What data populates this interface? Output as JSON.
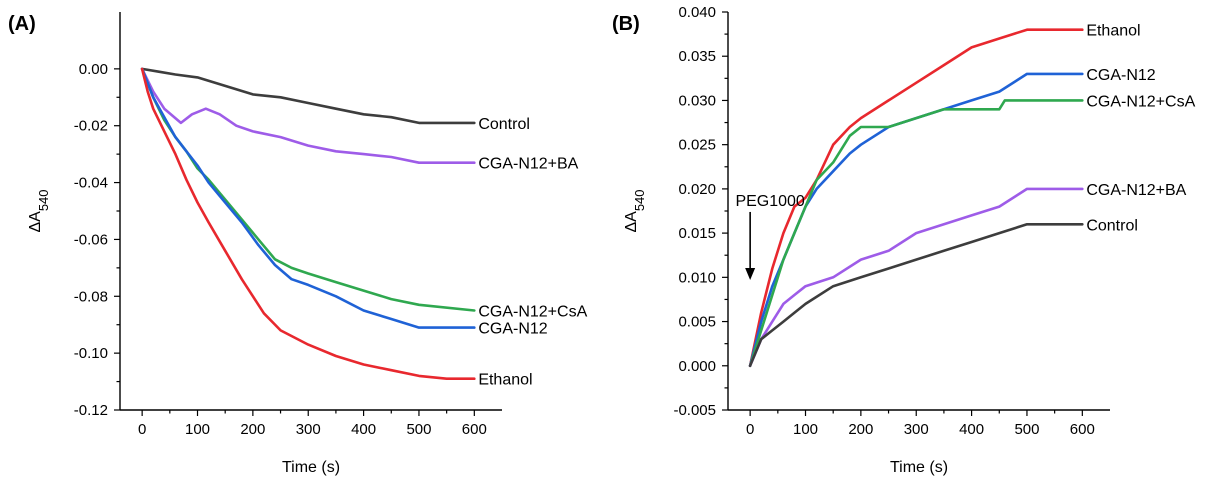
{
  "chart_data": [
    {
      "panel": "(A)",
      "type": "line",
      "xlabel": "Time (s)",
      "ylabel_main": "ΔA",
      "ylabel_sub": "540",
      "xlim": [
        -40,
        650
      ],
      "ylim": [
        -0.12,
        0.02
      ],
      "xticks": [
        0,
        100,
        200,
        300,
        400,
        500,
        600
      ],
      "yticks": [
        -0.12,
        -0.1,
        -0.08,
        -0.06,
        -0.04,
        -0.02,
        0.0
      ],
      "ytick_labels": [
        "-0.12",
        "-0.10",
        "-0.08",
        "-0.06",
        "-0.04",
        "-0.02",
        "0.00"
      ],
      "series": [
        {
          "name": "Control",
          "color": "#3d3d3d",
          "x": [
            0,
            30,
            60,
            100,
            150,
            200,
            250,
            300,
            350,
            400,
            450,
            500,
            600
          ],
          "y": [
            0,
            -0.001,
            -0.002,
            -0.003,
            -0.006,
            -0.009,
            -0.01,
            -0.012,
            -0.014,
            -0.016,
            -0.017,
            -0.019,
            -0.019
          ]
        },
        {
          "name": "CGA-N12+BA",
          "color": "#9e5ce8",
          "x": [
            0,
            20,
            40,
            70,
            90,
            115,
            140,
            170,
            200,
            250,
            300,
            350,
            400,
            450,
            500,
            600
          ],
          "y": [
            0,
            -0.008,
            -0.014,
            -0.019,
            -0.016,
            -0.014,
            -0.016,
            -0.02,
            -0.022,
            -0.024,
            -0.027,
            -0.029,
            -0.03,
            -0.031,
            -0.033,
            -0.033
          ]
        },
        {
          "name": "CGA-N12+CsA",
          "color": "#2fa84f",
          "x": [
            0,
            20,
            40,
            60,
            80,
            100,
            120,
            150,
            180,
            210,
            240,
            270,
            300,
            350,
            400,
            450,
            500,
            600
          ],
          "y": [
            0,
            -0.01,
            -0.018,
            -0.024,
            -0.029,
            -0.035,
            -0.039,
            -0.046,
            -0.053,
            -0.06,
            -0.067,
            -0.07,
            -0.072,
            -0.075,
            -0.078,
            -0.081,
            -0.083,
            -0.085
          ]
        },
        {
          "name": "CGA-N12",
          "color": "#1f62d6",
          "x": [
            0,
            20,
            40,
            60,
            80,
            100,
            120,
            150,
            180,
            210,
            240,
            270,
            300,
            350,
            400,
            450,
            500,
            600
          ],
          "y": [
            0,
            -0.01,
            -0.017,
            -0.024,
            -0.029,
            -0.034,
            -0.04,
            -0.047,
            -0.054,
            -0.062,
            -0.069,
            -0.074,
            -0.076,
            -0.08,
            -0.085,
            -0.088,
            -0.091,
            -0.091
          ]
        },
        {
          "name": "Ethanol",
          "color": "#e8282e",
          "x": [
            0,
            10,
            20,
            40,
            60,
            80,
            100,
            120,
            150,
            180,
            200,
            220,
            250,
            300,
            350,
            400,
            450,
            500,
            550,
            600
          ],
          "y": [
            0,
            -0.008,
            -0.014,
            -0.022,
            -0.03,
            -0.039,
            -0.047,
            -0.054,
            -0.064,
            -0.074,
            -0.08,
            -0.086,
            -0.092,
            -0.097,
            -0.101,
            -0.104,
            -0.106,
            -0.108,
            -0.109,
            -0.109
          ]
        }
      ],
      "annotations": []
    },
    {
      "panel": "(B)",
      "type": "line",
      "xlabel": "Time (s)",
      "ylabel_main": "ΔA",
      "ylabel_sub": "540",
      "xlim": [
        -40,
        650
      ],
      "ylim": [
        -0.005,
        0.04
      ],
      "xticks": [
        0,
        100,
        200,
        300,
        400,
        500,
        600
      ],
      "yticks": [
        -0.005,
        0.0,
        0.005,
        0.01,
        0.015,
        0.02,
        0.025,
        0.03,
        0.035,
        0.04
      ],
      "ytick_labels": [
        "-0.005",
        "0.000",
        "0.005",
        "0.010",
        "0.015",
        "0.020",
        "0.025",
        "0.030",
        "0.035",
        "0.040"
      ],
      "series": [
        {
          "name": "Ethanol",
          "color": "#e8282e",
          "x": [
            0,
            20,
            40,
            60,
            80,
            100,
            120,
            150,
            180,
            200,
            250,
            300,
            350,
            400,
            450,
            500,
            600
          ],
          "y": [
            0,
            0.006,
            0.011,
            0.015,
            0.018,
            0.019,
            0.021,
            0.025,
            0.027,
            0.028,
            0.03,
            0.032,
            0.034,
            0.036,
            0.037,
            0.038,
            0.038
          ]
        },
        {
          "name": "CGA-N12",
          "color": "#1f62d6",
          "x": [
            0,
            20,
            40,
            60,
            80,
            100,
            120,
            150,
            180,
            200,
            250,
            300,
            350,
            400,
            450,
            500,
            600
          ],
          "y": [
            0,
            0.005,
            0.009,
            0.012,
            0.015,
            0.018,
            0.02,
            0.022,
            0.024,
            0.025,
            0.027,
            0.028,
            0.029,
            0.03,
            0.031,
            0.033,
            0.033
          ]
        },
        {
          "name": "CGA-N12+CsA",
          "color": "#2fa84f",
          "x": [
            0,
            20,
            40,
            60,
            80,
            100,
            120,
            150,
            180,
            200,
            250,
            300,
            350,
            400,
            450,
            460,
            500,
            600
          ],
          "y": [
            0,
            0.004,
            0.008,
            0.012,
            0.015,
            0.018,
            0.021,
            0.023,
            0.026,
            0.027,
            0.027,
            0.028,
            0.029,
            0.029,
            0.029,
            0.03,
            0.03,
            0.03
          ]
        },
        {
          "name": "CGA-N12+BA",
          "color": "#9e5ce8",
          "x": [
            0,
            20,
            40,
            60,
            80,
            100,
            150,
            200,
            250,
            300,
            350,
            400,
            450,
            500,
            600
          ],
          "y": [
            0,
            0.003,
            0.005,
            0.007,
            0.008,
            0.009,
            0.01,
            0.012,
            0.013,
            0.015,
            0.016,
            0.017,
            0.018,
            0.02,
            0.02
          ]
        },
        {
          "name": "Control",
          "color": "#3d3d3d",
          "x": [
            0,
            20,
            40,
            60,
            80,
            100,
            150,
            200,
            250,
            300,
            350,
            400,
            450,
            500,
            600
          ],
          "y": [
            0,
            0.003,
            0.004,
            0.005,
            0.006,
            0.007,
            0.009,
            0.01,
            0.011,
            0.012,
            0.013,
            0.014,
            0.015,
            0.016,
            0.016
          ]
        }
      ],
      "annotations": [
        {
          "text": "PEG1000",
          "x": 0,
          "y": 0.014,
          "arrow": "down"
        }
      ]
    }
  ]
}
